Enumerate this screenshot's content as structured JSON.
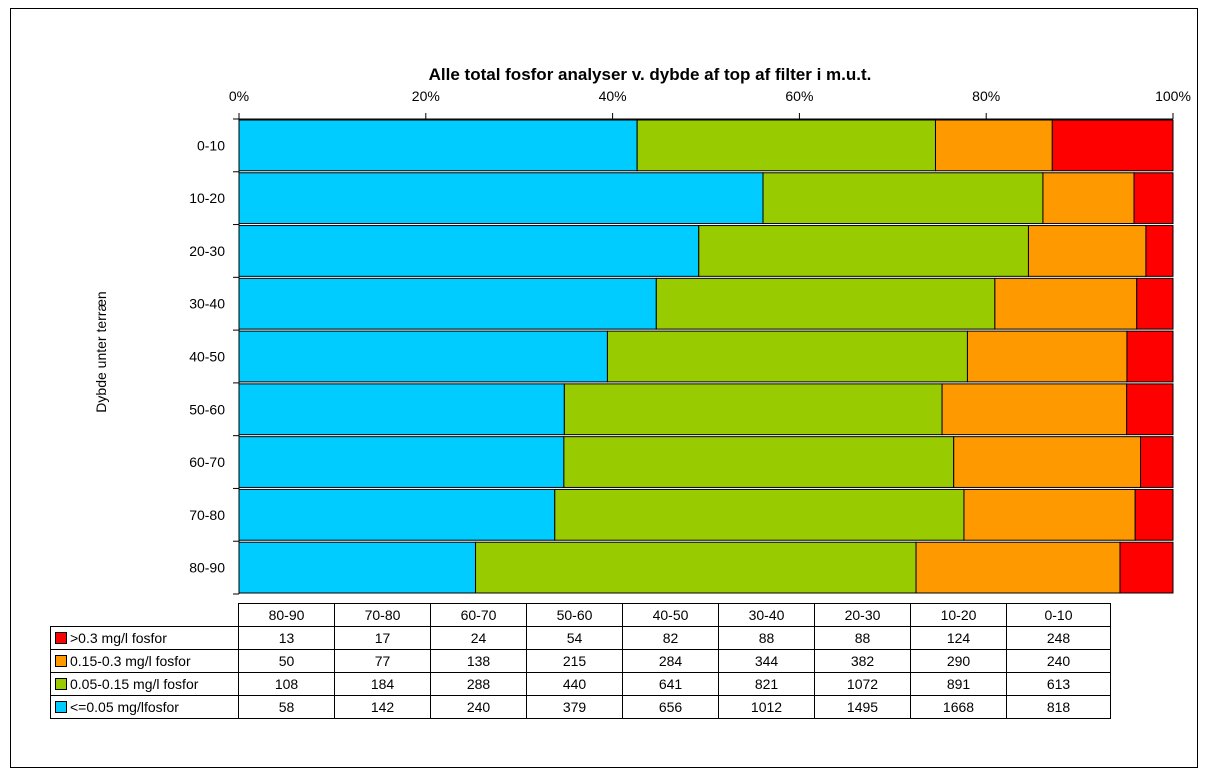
{
  "chart_data": {
    "type": "bar",
    "orientation": "horizontal",
    "stacking": "percent",
    "title": "Alle total fosfor analyser v. dybde af top af filter i m.u.t.",
    "ylabel": "Dybde unter terræn",
    "x_ticks": [
      "0%",
      "20%",
      "40%",
      "60%",
      "80%",
      "100%"
    ],
    "xlim": [
      0,
      100
    ],
    "categories": [
      "0-10",
      "10-20",
      "20-30",
      "30-40",
      "40-50",
      "50-60",
      "60-70",
      "70-80",
      "80-90"
    ],
    "table_columns": [
      "80-90",
      "70-80",
      "60-70",
      "50-60",
      "40-50",
      "30-40",
      "20-30",
      "10-20",
      "0-10"
    ],
    "series": [
      {
        "name": "<=0.05 mg/lfosfor",
        "color": "#00CCFF",
        "values": [
          818,
          1668,
          1495,
          1012,
          656,
          379,
          240,
          142,
          58
        ]
      },
      {
        "name": "0.05-0.15 mg/l fosfor",
        "color": "#99CC00",
        "values": [
          613,
          891,
          1072,
          821,
          641,
          440,
          288,
          184,
          108
        ]
      },
      {
        "name": "0.15-0.3 mg/l fosfor",
        "color": "#FF9900",
        "values": [
          240,
          290,
          382,
          344,
          284,
          215,
          138,
          77,
          50
        ]
      },
      {
        "name": ">0.3 mg/l fosfor",
        "color": "#FF0000",
        "values": [
          248,
          124,
          88,
          88,
          82,
          54,
          24,
          17,
          13
        ]
      }
    ],
    "table_rows": [
      {
        "label": ">0.3 mg/l fosfor",
        "color": "#FF0000",
        "values": [
          "13",
          "17",
          "24",
          "54",
          "82",
          "88",
          "88",
          "124",
          "248"
        ]
      },
      {
        "label": "0.15-0.3 mg/l fosfor",
        "color": "#FF9900",
        "values": [
          "50",
          "77",
          "138",
          "215",
          "284",
          "344",
          "382",
          "290",
          "240"
        ]
      },
      {
        "label": "0.05-0.15 mg/l fosfor",
        "color": "#99CC00",
        "values": [
          "108",
          "184",
          "288",
          "440",
          "641",
          "821",
          "1072",
          "891",
          "613"
        ]
      },
      {
        "label": "<=0.05 mg/lfosfor",
        "color": "#00CCFF",
        "values": [
          "58",
          "142",
          "240",
          "379",
          "656",
          "1012",
          "1495",
          "1668",
          "818"
        ]
      }
    ],
    "legend": "table-left",
    "grid": false
  }
}
